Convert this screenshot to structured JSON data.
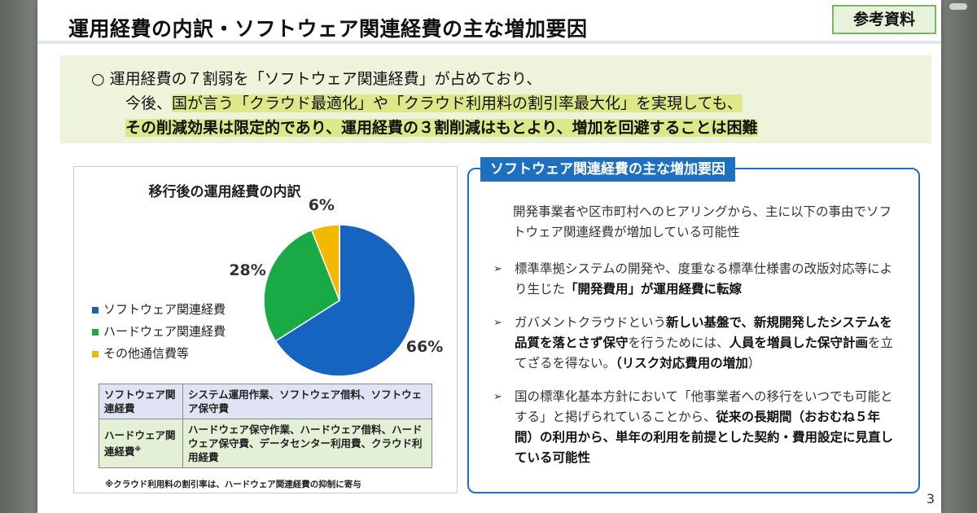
{
  "slide": {
    "title": "運用経費の内訳・ソフトウェア関連経費の主な増加要因",
    "badge": "参考資料",
    "page_number": "3"
  },
  "summary": {
    "line1": "○ 運用経費の７割弱を「ソフトウェア関連経費」が占めており、",
    "line2_pre": "今後、",
    "line2_hl": "国が言う「クラウド最適化」や「クラウド利用料の割引率最大化」を実現しても、",
    "line3": "その削減効果は限定的であり、運用経費の３割削減はもとより、増加を回避することは困難"
  },
  "chart_data": {
    "type": "pie",
    "title": "移行後の運用経費の内訳",
    "categories": [
      "ソフトウェア関連経費",
      "ハードウェア関連経費",
      "その他通信費等"
    ],
    "values": [
      66,
      28,
      6
    ],
    "labels": [
      "66%",
      "28%",
      "6%"
    ],
    "colors": [
      "#1565c0",
      "#1aaa45",
      "#f5b800"
    ],
    "legend_position": "left"
  },
  "cost_table": {
    "rows": [
      {
        "header": "ソフトウェア関連経費",
        "content": "システム運用作業、ソフトウェア借料、ソフトウェア保守費"
      },
      {
        "header": "ハードウェア関連経費",
        "header_mark": "※",
        "content": "ハードウェア保守作業、ハードウェア借料、ハードウェア保守費、データセンター利用費、クラウド利用経費"
      }
    ],
    "footnote": "※クラウド利用料の割引率は、ハードウェア関連経費の抑制に寄与"
  },
  "factors": {
    "title": "ソフトウェア関連経費の主な増加要因",
    "intro": "開発事業者や区市町村へのヒアリングから、主に以下の事由でソフトウェア関連経費が増加している可能性",
    "bullet_mark": "➢",
    "b1_a": "標準準拠システムの開発や、度重なる標準仕様書の改版対応等により生じた",
    "b1_b": "「開発費用」が運用経費に転嫁",
    "b2_a": "ガバメントクラウドという",
    "b2_b": "新しい基盤で、新規開発したシステムを品質を落とさず保守",
    "b2_c": "を行うためには、",
    "b2_d": "人員を増員した保守計画",
    "b2_e": "を立てざるを得ない。",
    "b2_f": "（リスク対応費用の増加",
    "b2_g": "）",
    "b3_a": "国の標準化基本方針において「他事業者への移行をいつでも可能とする」と掲げられていることから、",
    "b3_b": "従来の長期間（おおむね５年間）の利用から、単年の利用を前提とした契約・費用設定に見直している可能性"
  }
}
